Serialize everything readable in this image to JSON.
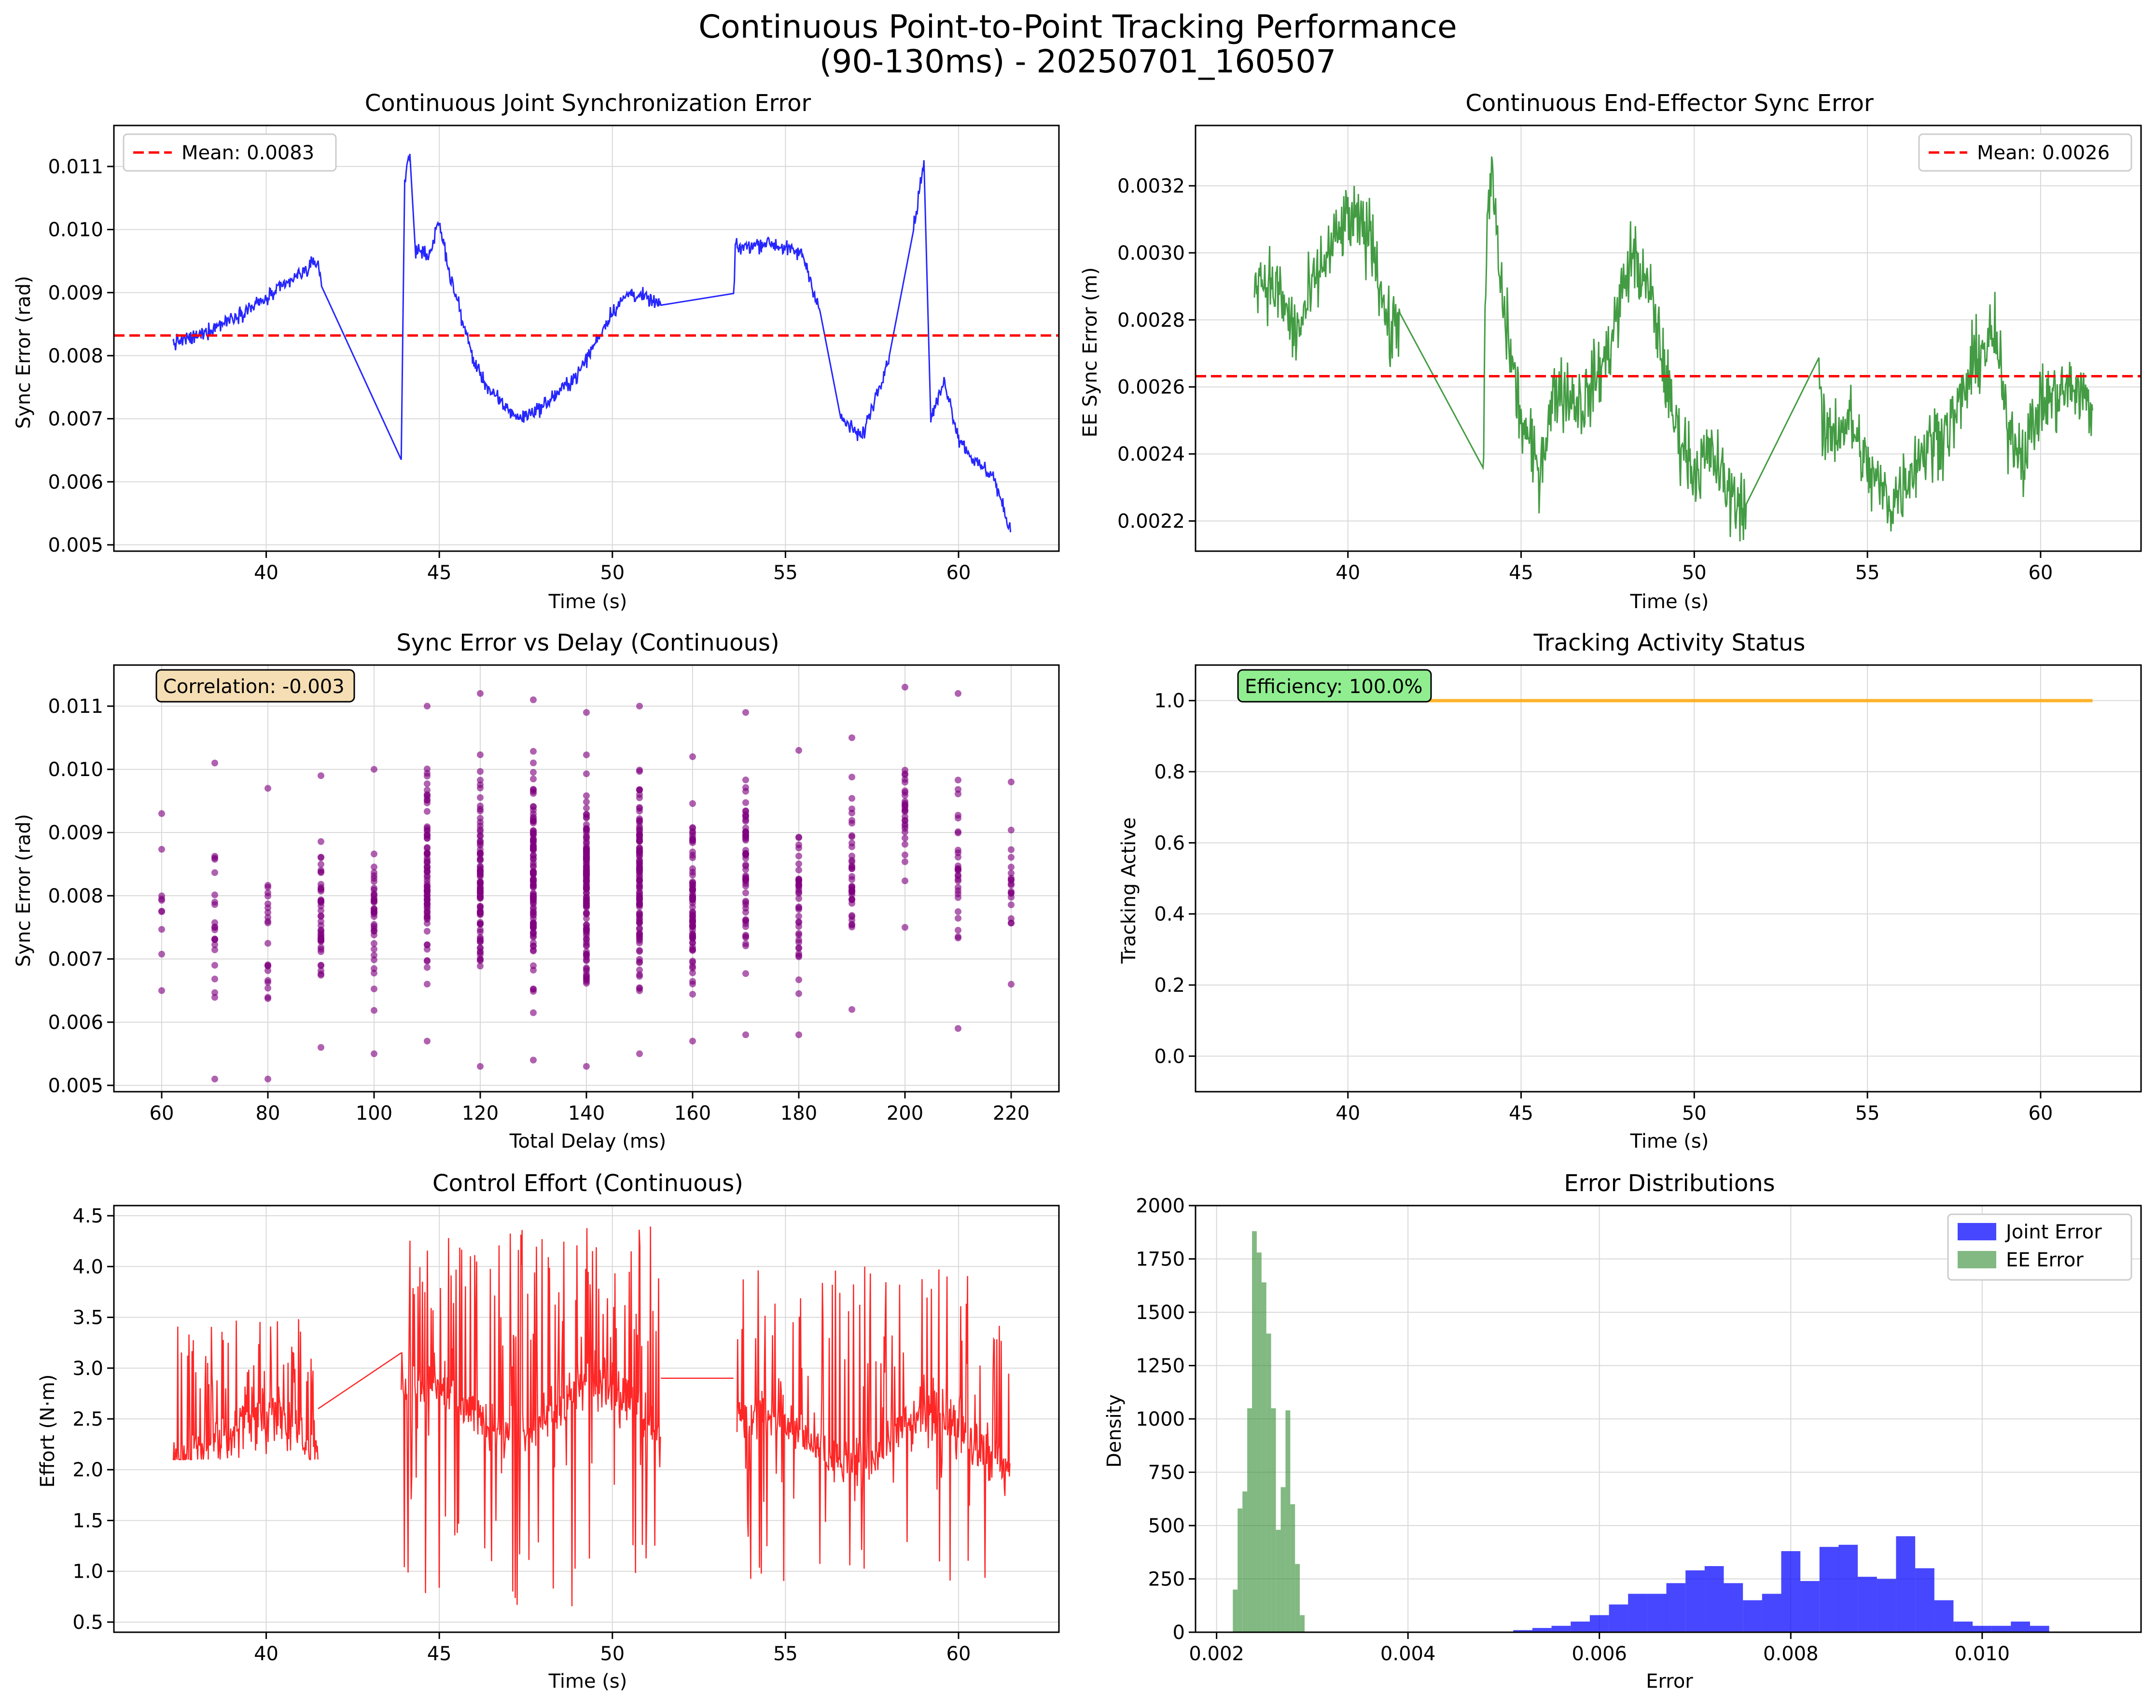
{
  "figure": {
    "title_line1": "Continuous Point-to-Point Tracking Performance",
    "title_line2": "(90-130ms) - 20250701_160507"
  },
  "colors": {
    "joint": "#0000ff",
    "ee": "#228b22",
    "mean_line": "#ff0000",
    "scatter": "#800080",
    "status": "#ffa500",
    "effort": "#ff0000",
    "hist_joint": "#0000ff",
    "hist_ee": "#2e8b2e",
    "corr_box": "#f5deb3",
    "eff_box": "#90ee90"
  },
  "chart_data": [
    {
      "id": "joint",
      "type": "line",
      "title": "Continuous Joint Synchronization Error",
      "xlabel": "Time (s)",
      "ylabel": "Sync Error (rad)",
      "xlim": [
        35.6,
        62.9
      ],
      "ylim": [
        0.0049,
        0.01165
      ],
      "xticks": [
        40,
        45,
        50,
        55,
        60
      ],
      "yticks": [
        0.005,
        0.006,
        0.007,
        0.008,
        0.009,
        0.01,
        0.011
      ],
      "ytick_labels": [
        "0.005",
        "0.006",
        "0.007",
        "0.008",
        "0.009",
        "0.010",
        "0.011"
      ],
      "legend": {
        "label": "Mean: 0.0083",
        "position": "upper-left"
      },
      "mean": 0.00832,
      "series": [
        {
          "color_key": "joint",
          "noise": 0.00012,
          "points": [
            [
              37.3,
              0.0082
            ],
            [
              38.0,
              0.0083
            ],
            [
              39.0,
              0.0086
            ],
            [
              40.0,
              0.0089
            ],
            [
              41.0,
              0.0093
            ],
            [
              41.5,
              0.0095
            ],
            [
              41.6,
              0.0091
            ],
            [
              43.9,
              0.00635
            ],
            [
              44.0,
              0.0108
            ],
            [
              44.15,
              0.0112
            ],
            [
              44.3,
              0.0097
            ],
            [
              44.7,
              0.0096
            ],
            [
              45.0,
              0.0101
            ],
            [
              45.3,
              0.0093
            ],
            [
              46.0,
              0.0079
            ],
            [
              46.5,
              0.0074
            ],
            [
              47.3,
              0.007
            ],
            [
              48.0,
              0.0072
            ],
            [
              49.0,
              0.0077
            ],
            [
              50.0,
              0.0087
            ],
            [
              50.5,
              0.009
            ],
            [
              51.0,
              0.0089
            ],
            [
              51.4,
              0.0088
            ],
            [
              53.5,
              0.0089
            ],
            [
              53.55,
              0.0097
            ],
            [
              54.5,
              0.0098
            ],
            [
              55.5,
              0.0096
            ],
            [
              56.0,
              0.0087
            ],
            [
              56.6,
              0.007
            ],
            [
              57.2,
              0.0067
            ],
            [
              58.0,
              0.008
            ],
            [
              58.7,
              0.01
            ],
            [
              59.0,
              0.0111
            ],
            [
              59.2,
              0.007
            ],
            [
              59.6,
              0.0076
            ],
            [
              60.0,
              0.0067
            ],
            [
              60.5,
              0.0063
            ],
            [
              61.0,
              0.0061
            ],
            [
              61.5,
              0.0052
            ]
          ]
        }
      ]
    },
    {
      "id": "ee",
      "type": "line",
      "title": "Continuous End-Effector Sync Error",
      "xlabel": "Time (s)",
      "ylabel": "EE Sync Error (m)",
      "xlim": [
        35.6,
        62.9
      ],
      "ylim": [
        0.00211,
        0.00338
      ],
      "xticks": [
        40,
        45,
        50,
        55,
        60
      ],
      "yticks": [
        0.0022,
        0.0024,
        0.0026,
        0.0028,
        0.003,
        0.0032
      ],
      "ytick_labels": [
        "0.0022",
        "0.0024",
        "0.0026",
        "0.0028",
        "0.0030",
        "0.0032"
      ],
      "legend": {
        "label": "Mean: 0.0026",
        "position": "upper-right"
      },
      "mean": 0.002632,
      "series": [
        {
          "color_key": "ee",
          "noise": 0.00011,
          "points": [
            [
              37.3,
              0.00295
            ],
            [
              38.0,
              0.00288
            ],
            [
              38.5,
              0.00275
            ],
            [
              39.2,
              0.00295
            ],
            [
              40.0,
              0.0031
            ],
            [
              40.7,
              0.00305
            ],
            [
              41.2,
              0.00275
            ],
            [
              41.5,
              0.00282
            ],
            [
              43.9,
              0.00237
            ],
            [
              44.0,
              0.003
            ],
            [
              44.15,
              0.00325
            ],
            [
              44.4,
              0.0029
            ],
            [
              45.0,
              0.0025
            ],
            [
              45.5,
              0.00235
            ],
            [
              46.0,
              0.0026
            ],
            [
              46.8,
              0.00255
            ],
            [
              47.5,
              0.0027
            ],
            [
              48.2,
              0.003
            ],
            [
              48.8,
              0.00285
            ],
            [
              49.4,
              0.0025
            ],
            [
              50.0,
              0.00235
            ],
            [
              50.5,
              0.0024
            ],
            [
              51.0,
              0.00228
            ],
            [
              51.5,
              0.00225
            ],
            [
              53.6,
              0.00265
            ],
            [
              53.7,
              0.00245
            ],
            [
              54.5,
              0.0025
            ],
            [
              55.0,
              0.00235
            ],
            [
              55.7,
              0.00225
            ],
            [
              56.5,
              0.0024
            ],
            [
              57.5,
              0.0025
            ],
            [
              58.2,
              0.0027
            ],
            [
              58.7,
              0.00275
            ],
            [
              59.0,
              0.0025
            ],
            [
              59.5,
              0.0024
            ],
            [
              60.0,
              0.00255
            ],
            [
              61.0,
              0.0026
            ],
            [
              61.5,
              0.00253
            ]
          ]
        }
      ]
    },
    {
      "id": "scatter",
      "type": "scatter",
      "title": "Sync Error vs Delay (Continuous)",
      "xlabel": "Total Delay (ms)",
      "ylabel": "Sync Error (rad)",
      "xlim": [
        51,
        229
      ],
      "ylim": [
        0.0049,
        0.01165
      ],
      "xticks": [
        60,
        80,
        100,
        120,
        140,
        160,
        180,
        200,
        220
      ],
      "yticks": [
        0.005,
        0.006,
        0.007,
        0.008,
        0.009,
        0.01,
        0.011
      ],
      "ytick_labels": [
        "0.005",
        "0.006",
        "0.007",
        "0.008",
        "0.009",
        "0.010",
        "0.011"
      ],
      "annotation": "Correlation: -0.003",
      "columns": [
        {
          "x": 60,
          "n": 10,
          "min": 0.0065,
          "max": 0.0093
        },
        {
          "x": 70,
          "n": 22,
          "min": 0.0051,
          "max": 0.0101
        },
        {
          "x": 80,
          "n": 22,
          "min": 0.0051,
          "max": 0.0097
        },
        {
          "x": 90,
          "n": 45,
          "min": 0.0056,
          "max": 0.0099
        },
        {
          "x": 100,
          "n": 40,
          "min": 0.0055,
          "max": 0.01
        },
        {
          "x": 110,
          "n": 80,
          "min": 0.0057,
          "max": 0.011
        },
        {
          "x": 120,
          "n": 90,
          "min": 0.0053,
          "max": 0.0112
        },
        {
          "x": 130,
          "n": 110,
          "min": 0.0054,
          "max": 0.0111
        },
        {
          "x": 140,
          "n": 130,
          "min": 0.0053,
          "max": 0.0109
        },
        {
          "x": 150,
          "n": 110,
          "min": 0.0055,
          "max": 0.011
        },
        {
          "x": 160,
          "n": 80,
          "min": 0.0057,
          "max": 0.0102
        },
        {
          "x": 170,
          "n": 60,
          "min": 0.0058,
          "max": 0.0109
        },
        {
          "x": 180,
          "n": 40,
          "min": 0.0058,
          "max": 0.0103
        },
        {
          "x": 190,
          "n": 40,
          "min": 0.0062,
          "max": 0.0105
        },
        {
          "x": 200,
          "n": 30,
          "min": 0.0075,
          "max": 0.0113
        },
        {
          "x": 210,
          "n": 30,
          "min": 0.0059,
          "max": 0.0112
        },
        {
          "x": 220,
          "n": 20,
          "min": 0.0066,
          "max": 0.0098
        }
      ]
    },
    {
      "id": "status",
      "type": "line",
      "title": "Tracking Activity Status",
      "xlabel": "Time (s)",
      "ylabel": "Tracking Active",
      "xlim": [
        35.6,
        62.9
      ],
      "ylim": [
        -0.1,
        1.1
      ],
      "xticks": [
        40,
        45,
        50,
        55,
        60
      ],
      "yticks": [
        0.0,
        0.2,
        0.4,
        0.6,
        0.8,
        1.0
      ],
      "ytick_labels": [
        "0.0",
        "0.2",
        "0.4",
        "0.6",
        "0.8",
        "1.0"
      ],
      "annotation": "Efficiency: 100.0%",
      "series": [
        {
          "color_key": "status",
          "noise": 0,
          "points": [
            [
              37.3,
              1.0
            ],
            [
              61.5,
              1.0
            ]
          ]
        }
      ]
    },
    {
      "id": "effort",
      "type": "line",
      "title": "Control Effort (Continuous)",
      "xlabel": "Time (s)",
      "ylabel": "Effort (N·m)",
      "xlim": [
        35.6,
        62.9
      ],
      "ylim": [
        0.4,
        4.6
      ],
      "xticks": [
        40,
        45,
        50,
        55,
        60
      ],
      "yticks": [
        0.5,
        1.0,
        1.5,
        2.0,
        2.5,
        3.0,
        3.5,
        4.0,
        4.5
      ],
      "ytick_labels": [
        "0.5",
        "1.0",
        "1.5",
        "2.0",
        "2.5",
        "3.0",
        "3.5",
        "4.0",
        "4.5"
      ],
      "segments": [
        {
          "x0": 37.3,
          "x1": 41.5,
          "base": 2.3,
          "max": 3.5,
          "min": 2.1
        },
        {
          "x0": 43.9,
          "x1": 51.4,
          "base": 2.6,
          "max": 4.4,
          "min": 0.6
        },
        {
          "x0": 53.6,
          "x1": 61.5,
          "base": 2.3,
          "max": 4.0,
          "min": 0.9
        }
      ],
      "connectors": [
        [
          [
            41.5,
            2.6
          ],
          [
            43.9,
            3.15
          ]
        ],
        [
          [
            51.4,
            2.9
          ],
          [
            53.5,
            2.9
          ]
        ]
      ]
    },
    {
      "id": "hist",
      "type": "bar",
      "title": "Error Distributions",
      "xlabel": "Error",
      "ylabel": "Density",
      "xlim": [
        0.00178,
        0.01166
      ],
      "ylim": [
        0,
        2000
      ],
      "xticks": [
        0.002,
        0.004,
        0.006,
        0.008,
        0.01
      ],
      "xtick_labels": [
        "0.002",
        "0.004",
        "0.006",
        "0.008",
        "0.010"
      ],
      "yticks": [
        0,
        250,
        500,
        750,
        1000,
        1250,
        1500,
        1750,
        2000
      ],
      "ytick_labels": [
        "0",
        "250",
        "500",
        "750",
        "1000",
        "1250",
        "1500",
        "1750",
        "2000"
      ],
      "legend": [
        {
          "label": "Joint Error",
          "color_key": "hist_joint"
        },
        {
          "label": "EE Error",
          "color_key": "hist_ee"
        }
      ],
      "series": [
        {
          "name": "Joint Error",
          "color_key": "hist_joint",
          "bin_start": 0.0051,
          "bin_width": 0.0002,
          "values": [
            10,
            20,
            30,
            50,
            80,
            130,
            180,
            180,
            230,
            290,
            310,
            230,
            150,
            180,
            380,
            240,
            400,
            410,
            260,
            250,
            450,
            300,
            150,
            50,
            30,
            30,
            50,
            30
          ]
        },
        {
          "name": "EE Error",
          "color_key": "hist_ee",
          "bin_start": 0.00217,
          "bin_width": 5e-05,
          "values": [
            200,
            580,
            660,
            1050,
            1880,
            1780,
            1640,
            1400,
            1050,
            480,
            680,
            1040,
            600,
            320,
            80
          ]
        }
      ]
    }
  ]
}
